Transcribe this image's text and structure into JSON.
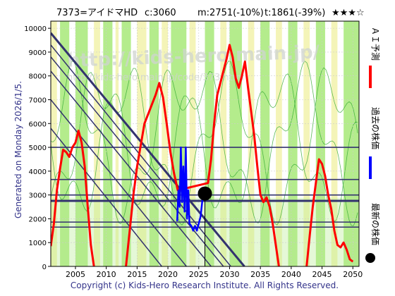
{
  "header": {
    "code_name": "7373=アイドマHD",
    "current": "c:3060",
    "mean": "m:2751(-10%)",
    "target": "t:1861(-39%)",
    "stars": "★★★☆"
  },
  "side_text": "Generated on Monday 2026/1/5.",
  "footer": "Copyright (c) Kids-Hero Research Institute. All Rights Reserved.",
  "watermark": {
    "line1": "http://kids-hero.main.jp/",
    "line2": "http://kids-hero.main.jp/code/373.html"
  },
  "legend": [
    {
      "label": "ＡＩ予測",
      "color": "#ff0000"
    },
    {
      "label": "過去の株価",
      "color": "#0000ff"
    },
    {
      "label": "最新の株価",
      "color": "#000000"
    }
  ],
  "colors": {
    "prediction": "#ff0000",
    "history": "#0000ff",
    "green_band": "#b4ec8c",
    "yellow_band": "#f4f4b8",
    "thin_line": "#33aa33",
    "trend": "#33336e"
  },
  "chart_data": {
    "type": "line",
    "xlim": [
      2001,
      2051
    ],
    "ylim": [
      0,
      10300
    ],
    "x_ticks": [
      2005,
      2010,
      2015,
      2020,
      2025,
      2030,
      2035,
      2040,
      2045,
      2050
    ],
    "y_ticks": [
      0,
      1000,
      2000,
      3000,
      4000,
      5000,
      6000,
      7000,
      8000,
      9000,
      10000
    ],
    "latest_point": {
      "x": 2026.0,
      "y": 3060
    },
    "horizontal_levels": [
      5000,
      3650,
      3000,
      2751,
      1861,
      1650
    ],
    "diagonal_lines": [
      {
        "x1": 2001,
        "y1": 9800,
        "x2": 2032.4,
        "y2": 0
      },
      {
        "x1": 2001,
        "y1": 9300,
        "x2": 2030.2,
        "y2": 0
      },
      {
        "x1": 2001,
        "y1": 8800,
        "x2": 2029.0,
        "y2": 0
      },
      {
        "x1": 2001,
        "y1": 8200,
        "x2": 2027.0,
        "y2": 0
      },
      {
        "x1": 2001,
        "y1": 7000,
        "x2": 2023.0,
        "y2": 0
      },
      {
        "x1": 2001,
        "y1": 5800,
        "x2": 2019.0,
        "y2": 0
      }
    ],
    "series": [
      {
        "name": "ＡＩ予測",
        "color": "#ff0000",
        "points": [
          [
            2001,
            850
          ],
          [
            2001.5,
            1800
          ],
          [
            2002,
            3200
          ],
          [
            2002.5,
            4100
          ],
          [
            2003,
            4900
          ],
          [
            2003.5,
            4800
          ],
          [
            2004,
            4600
          ],
          [
            2004.5,
            5000
          ],
          [
            2005,
            5200
          ],
          [
            2005.5,
            5700
          ],
          [
            2006,
            5200
          ],
          [
            2006.5,
            4200
          ],
          [
            2007,
            2500
          ],
          [
            2007.5,
            900
          ],
          [
            2008,
            0
          ],
          [
            2013.2,
            0
          ],
          [
            2013.8,
            1500
          ],
          [
            2014.4,
            3000
          ],
          [
            2015,
            4200
          ],
          [
            2015.6,
            5100
          ],
          [
            2016.2,
            6000
          ],
          [
            2016.8,
            6400
          ],
          [
            2017.4,
            6800
          ],
          [
            2018,
            7200
          ],
          [
            2018.6,
            7700
          ],
          [
            2019.2,
            7100
          ],
          [
            2019.8,
            6000
          ],
          [
            2020.4,
            4800
          ],
          [
            2021,
            3900
          ],
          [
            2021.6,
            3200
          ],
          [
            2026.5,
            3500
          ],
          [
            2027,
            4500
          ],
          [
            2027.5,
            6000
          ],
          [
            2028,
            7200
          ],
          [
            2028.5,
            7700
          ],
          [
            2029,
            8200
          ],
          [
            2029.5,
            8700
          ],
          [
            2030,
            9300
          ],
          [
            2030.5,
            8800
          ],
          [
            2031,
            7900
          ],
          [
            2031.5,
            7500
          ],
          [
            2032,
            8000
          ],
          [
            2032.5,
            8600
          ],
          [
            2033,
            7500
          ],
          [
            2033.5,
            6500
          ],
          [
            2034,
            5500
          ],
          [
            2034.5,
            4200
          ],
          [
            2035,
            3000
          ],
          [
            2035.5,
            2700
          ],
          [
            2036,
            2900
          ],
          [
            2036.5,
            2500
          ],
          [
            2037,
            1800
          ],
          [
            2037.5,
            900
          ],
          [
            2038,
            0
          ],
          [
            2042.5,
            0
          ],
          [
            2043,
            1300
          ],
          [
            2043.5,
            2500
          ],
          [
            2044,
            3500
          ],
          [
            2044.5,
            4500
          ],
          [
            2045,
            4300
          ],
          [
            2045.5,
            3800
          ],
          [
            2046,
            3000
          ],
          [
            2046.5,
            2400
          ],
          [
            2047,
            1500
          ],
          [
            2047.5,
            900
          ],
          [
            2048,
            800
          ],
          [
            2048.5,
            1000
          ],
          [
            2049,
            700
          ],
          [
            2049.5,
            300
          ],
          [
            2050,
            200
          ]
        ]
      },
      {
        "name": "過去の株価",
        "color": "#0000ff",
        "points": [
          [
            2021.5,
            1900
          ],
          [
            2021.7,
            3200
          ],
          [
            2021.9,
            2500
          ],
          [
            2022.1,
            5000
          ],
          [
            2022.3,
            2700
          ],
          [
            2022.5,
            4200
          ],
          [
            2022.7,
            2300
          ],
          [
            2022.9,
            5000
          ],
          [
            2023.1,
            2000
          ],
          [
            2023.3,
            3200
          ],
          [
            2023.5,
            1800
          ],
          [
            2023.8,
            1700
          ],
          [
            2024.1,
            1500
          ],
          [
            2024.4,
            1700
          ],
          [
            2024.7,
            1500
          ],
          [
            2025,
            1800
          ],
          [
            2025.3,
            2100
          ],
          [
            2025.6,
            2800
          ],
          [
            2026,
            3060
          ]
        ]
      }
    ]
  }
}
